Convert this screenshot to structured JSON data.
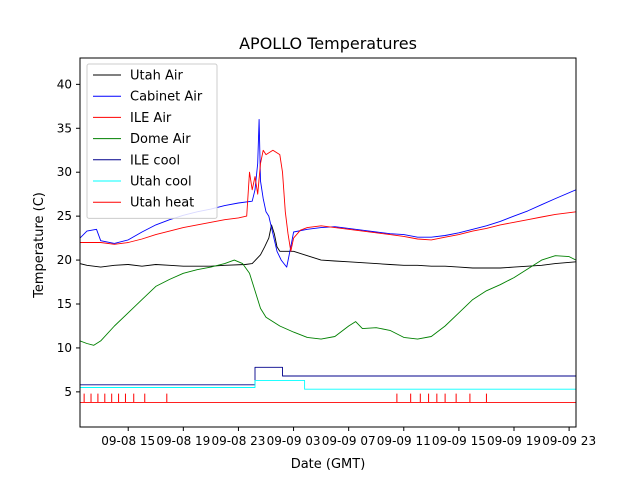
{
  "chart_data": {
    "type": "line",
    "title": "APOLLO Temperatures",
    "xlabel": "Date (GMT)",
    "ylabel": "Temperature (C)",
    "xlim": [
      11.5,
      47.5
    ],
    "ylim": [
      1,
      43
    ],
    "xunit": "hours since 09-08 00:00 GMT",
    "x_ticks": [
      {
        "value": 15,
        "label": "09-08 15"
      },
      {
        "value": 19,
        "label": "09-08 19"
      },
      {
        "value": 23,
        "label": "09-08 23"
      },
      {
        "value": 27,
        "label": "09-09 03"
      },
      {
        "value": 31,
        "label": "09-09 07"
      },
      {
        "value": 35,
        "label": "09-09 11"
      },
      {
        "value": 39,
        "label": "09-09 15"
      },
      {
        "value": 43,
        "label": "09-09 19"
      },
      {
        "value": 47,
        "label": "09-09 23"
      }
    ],
    "y_ticks": [
      5,
      10,
      15,
      20,
      25,
      30,
      35,
      40
    ],
    "legend_position": "top-left",
    "series": [
      {
        "name": "Utah Air",
        "color": "#000000",
        "points": [
          [
            11.5,
            19.6
          ],
          [
            12,
            19.4
          ],
          [
            13,
            19.2
          ],
          [
            14,
            19.4
          ],
          [
            15,
            19.5
          ],
          [
            16,
            19.3
          ],
          [
            17,
            19.5
          ],
          [
            18,
            19.4
          ],
          [
            19,
            19.3
          ],
          [
            20,
            19.3
          ],
          [
            21,
            19.3
          ],
          [
            22,
            19.4
          ],
          [
            23.5,
            19.5
          ],
          [
            24,
            19.6
          ],
          [
            24.6,
            20.6
          ],
          [
            24.9,
            21.5
          ],
          [
            25.2,
            22.5
          ],
          [
            25.4,
            24.0
          ],
          [
            25.6,
            23.0
          ],
          [
            25.8,
            21.5
          ],
          [
            26,
            21.0
          ],
          [
            27,
            21.0
          ],
          [
            28,
            20.5
          ],
          [
            29,
            20.0
          ],
          [
            30,
            19.9
          ],
          [
            31,
            19.8
          ],
          [
            32,
            19.7
          ],
          [
            33,
            19.6
          ],
          [
            34,
            19.5
          ],
          [
            35,
            19.4
          ],
          [
            36,
            19.4
          ],
          [
            37,
            19.3
          ],
          [
            38,
            19.3
          ],
          [
            39,
            19.2
          ],
          [
            40,
            19.1
          ],
          [
            41,
            19.1
          ],
          [
            42,
            19.1
          ],
          [
            43,
            19.2
          ],
          [
            44,
            19.3
          ],
          [
            45,
            19.4
          ],
          [
            46,
            19.6
          ],
          [
            47.5,
            19.8
          ]
        ]
      },
      {
        "name": "Cabinet Air",
        "color": "#0000ff",
        "points": [
          [
            11.5,
            22.5
          ],
          [
            12,
            23.3
          ],
          [
            12.7,
            23.5
          ],
          [
            13,
            22.2
          ],
          [
            14,
            21.9
          ],
          [
            15,
            22.3
          ],
          [
            16,
            23.2
          ],
          [
            17,
            24.0
          ],
          [
            18,
            24.6
          ],
          [
            19,
            25.1
          ],
          [
            20,
            25.5
          ],
          [
            21,
            25.8
          ],
          [
            22,
            26.2
          ],
          [
            23,
            26.5
          ],
          [
            24,
            26.7
          ],
          [
            24.2,
            28.0
          ],
          [
            24.4,
            31.0
          ],
          [
            24.5,
            36.0
          ],
          [
            24.6,
            29.0
          ],
          [
            24.8,
            27.0
          ],
          [
            25.0,
            25.5
          ],
          [
            25.2,
            25.0
          ],
          [
            25.5,
            23.0
          ],
          [
            25.8,
            21.0
          ],
          [
            26.1,
            20.0
          ],
          [
            26.5,
            19.2
          ],
          [
            26.8,
            21.5
          ],
          [
            27,
            23.2
          ],
          [
            28,
            23.5
          ],
          [
            29,
            23.7
          ],
          [
            30,
            23.8
          ],
          [
            31,
            23.6
          ],
          [
            32,
            23.4
          ],
          [
            33,
            23.2
          ],
          [
            34,
            23.0
          ],
          [
            35,
            22.9
          ],
          [
            36,
            22.6
          ],
          [
            37,
            22.6
          ],
          [
            38,
            22.8
          ],
          [
            39,
            23.1
          ],
          [
            40,
            23.5
          ],
          [
            41,
            23.9
          ],
          [
            42,
            24.4
          ],
          [
            43,
            25.0
          ],
          [
            44,
            25.6
          ],
          [
            45,
            26.3
          ],
          [
            46,
            27.0
          ],
          [
            47.5,
            28.0
          ]
        ]
      },
      {
        "name": "ILE Air",
        "color": "#ff0000",
        "points": [
          [
            11.5,
            22.0
          ],
          [
            13,
            22.0
          ],
          [
            14,
            21.8
          ],
          [
            15,
            22.0
          ],
          [
            16,
            22.4
          ],
          [
            17,
            22.9
          ],
          [
            18,
            23.3
          ],
          [
            19,
            23.7
          ],
          [
            20,
            24.0
          ],
          [
            21,
            24.3
          ],
          [
            22,
            24.6
          ],
          [
            23,
            24.8
          ],
          [
            23.6,
            25.0
          ],
          [
            23.8,
            30.0
          ],
          [
            24,
            28.0
          ],
          [
            24.2,
            29.5
          ],
          [
            24.4,
            27.5
          ],
          [
            24.6,
            31.0
          ],
          [
            24.8,
            32.5
          ],
          [
            25.0,
            32.0
          ],
          [
            25.5,
            32.5
          ],
          [
            26,
            32.0
          ],
          [
            26.2,
            30.0
          ],
          [
            26.4,
            25.5
          ],
          [
            26.6,
            23.0
          ],
          [
            26.8,
            21.0
          ],
          [
            27,
            22.5
          ],
          [
            27.5,
            23.4
          ],
          [
            28,
            23.7
          ],
          [
            29,
            23.9
          ],
          [
            30,
            23.7
          ],
          [
            31,
            23.5
          ],
          [
            32,
            23.3
          ],
          [
            33,
            23.1
          ],
          [
            34,
            22.9
          ],
          [
            35,
            22.7
          ],
          [
            36,
            22.4
          ],
          [
            37,
            22.3
          ],
          [
            38,
            22.6
          ],
          [
            39,
            22.9
          ],
          [
            40,
            23.3
          ],
          [
            41,
            23.6
          ],
          [
            42,
            24.0
          ],
          [
            43,
            24.3
          ],
          [
            44,
            24.6
          ],
          [
            45,
            24.9
          ],
          [
            46,
            25.2
          ],
          [
            47.5,
            25.5
          ]
        ]
      },
      {
        "name": "Dome Air",
        "color": "#008000",
        "points": [
          [
            11.5,
            10.8
          ],
          [
            12,
            10.5
          ],
          [
            12.5,
            10.3
          ],
          [
            13,
            10.8
          ],
          [
            14,
            12.5
          ],
          [
            15,
            14.0
          ],
          [
            16,
            15.5
          ],
          [
            17,
            17.0
          ],
          [
            18,
            17.8
          ],
          [
            19,
            18.5
          ],
          [
            20,
            18.9
          ],
          [
            21,
            19.2
          ],
          [
            22,
            19.6
          ],
          [
            22.7,
            20.0
          ],
          [
            23.3,
            19.6
          ],
          [
            23.8,
            18.5
          ],
          [
            24.2,
            16.5
          ],
          [
            24.6,
            14.5
          ],
          [
            25,
            13.5
          ],
          [
            26,
            12.5
          ],
          [
            27,
            11.8
          ],
          [
            28,
            11.2
          ],
          [
            29,
            11.0
          ],
          [
            30,
            11.3
          ],
          [
            31,
            12.5
          ],
          [
            31.5,
            13.0
          ],
          [
            32,
            12.2
          ],
          [
            33,
            12.3
          ],
          [
            34,
            12.0
          ],
          [
            35,
            11.2
          ],
          [
            36,
            11.0
          ],
          [
            37,
            11.3
          ],
          [
            38,
            12.5
          ],
          [
            39,
            14.0
          ],
          [
            40,
            15.5
          ],
          [
            41,
            16.5
          ],
          [
            42,
            17.2
          ],
          [
            43,
            18.0
          ],
          [
            44,
            19.0
          ],
          [
            45,
            20.0
          ],
          [
            46,
            20.5
          ],
          [
            47,
            20.4
          ],
          [
            47.5,
            20.0
          ]
        ]
      },
      {
        "name": "ILE cool",
        "color": "#00008b",
        "points": [
          [
            11.5,
            5.8
          ],
          [
            24.2,
            5.8
          ],
          [
            24.2,
            7.8
          ],
          [
            26.2,
            7.8
          ],
          [
            26.2,
            6.8
          ],
          [
            47.5,
            6.8
          ]
        ]
      },
      {
        "name": "Utah cool",
        "color": "#00ffff",
        "points": [
          [
            11.5,
            5.5
          ],
          [
            24.2,
            5.5
          ],
          [
            24.2,
            6.3
          ],
          [
            27.8,
            6.3
          ],
          [
            27.8,
            5.3
          ],
          [
            47.5,
            5.3
          ]
        ]
      },
      {
        "name": "Utah heat",
        "color": "#ff0000",
        "points": [
          [
            11.5,
            3.8
          ],
          [
            47.5,
            3.8
          ]
        ],
        "spikes": [
          11.8,
          12.3,
          12.8,
          13.3,
          13.8,
          14.3,
          14.8,
          15.4,
          16.2,
          17.8,
          34.5,
          35.5,
          36.2,
          36.8,
          37.4,
          38.0,
          38.8,
          39.8,
          41.0
        ],
        "spike_top": 4.8
      }
    ]
  }
}
